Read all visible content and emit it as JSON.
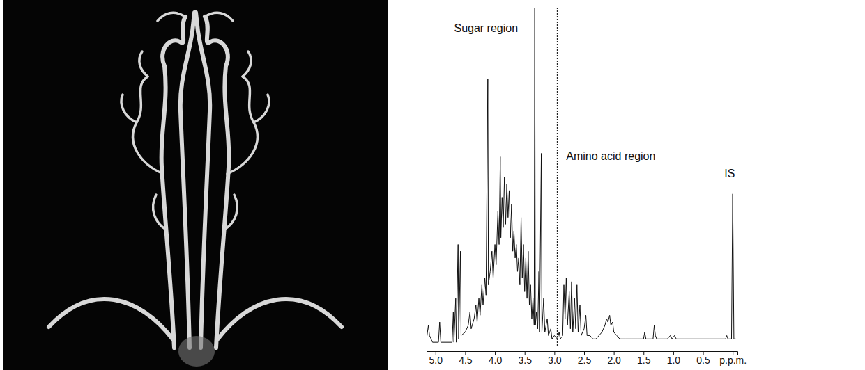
{
  "chart_data": {
    "type": "line",
    "color": "#111111",
    "tick_labels": "x",
    "xlim": [
      5.15,
      -0.08
    ],
    "ylim": [
      0,
      100
    ],
    "xticks": [
      {
        "value": 5,
        "label": "5.0"
      },
      {
        "value": 4.5,
        "label": "4.5"
      },
      {
        "value": 4,
        "label": "4.0"
      },
      {
        "value": 3.5,
        "label": "3.5"
      },
      {
        "value": 3,
        "label": "3.0"
      },
      {
        "value": 2.5,
        "label": "2.5"
      },
      {
        "value": 2,
        "label": "2.0"
      },
      {
        "value": 1.5,
        "label": "1.5"
      },
      {
        "value": 1,
        "label": "1.0"
      },
      {
        "value": 0.5,
        "label": "0.5"
      },
      {
        "value": 0,
        "label": "p.p.m."
      }
    ],
    "vlines": [
      2.95
    ],
    "annotations": [
      {
        "text": "Sugar region",
        "x": 4.15,
        "y": 93
      },
      {
        "text": "Amino acid region",
        "x": 2.05,
        "y": 55
      },
      {
        "text": "IS",
        "x": 0.05,
        "y": 50
      }
    ],
    "x": [
      5.15,
      5.12,
      5.1,
      5.05,
      4.95,
      4.93,
      4.91,
      4.8,
      4.72,
      4.7,
      4.69,
      4.66,
      4.65,
      4.62,
      4.61,
      4.58,
      4.57,
      4.5,
      4.45,
      4.42,
      4.4,
      4.35,
      4.32,
      4.3,
      4.27,
      4.25,
      4.22,
      4.2,
      4.17,
      4.15,
      4.12,
      4.11,
      4.08,
      4.05,
      4.03,
      4.0,
      3.98,
      3.95,
      3.93,
      3.91,
      3.9,
      3.88,
      3.86,
      3.84,
      3.82,
      3.8,
      3.78,
      3.76,
      3.74,
      3.72,
      3.7,
      3.68,
      3.66,
      3.64,
      3.62,
      3.6,
      3.58,
      3.56,
      3.54,
      3.52,
      3.5,
      3.48,
      3.46,
      3.44,
      3.42,
      3.4,
      3.38,
      3.36,
      3.34,
      3.33,
      3.32,
      3.3,
      3.28,
      3.26,
      3.25,
      3.22,
      3.21,
      3.18,
      3.16,
      3.12,
      3.1,
      3.06,
      3.04,
      3.0,
      2.95,
      2.92,
      2.9,
      2.86,
      2.84,
      2.82,
      2.8,
      2.78,
      2.75,
      2.73,
      2.71,
      2.69,
      2.66,
      2.64,
      2.62,
      2.6,
      2.57,
      2.55,
      2.5,
      2.47,
      2.45,
      2.4,
      2.35,
      2.3,
      2.25,
      2.2,
      2.15,
      2.12,
      2.1,
      2.07,
      2.05,
      2.02,
      2.0,
      1.95,
      1.9,
      1.8,
      1.7,
      1.6,
      1.5,
      1.48,
      1.46,
      1.4,
      1.34,
      1.32,
      1.3,
      1.28,
      1.2,
      1.1,
      1.05,
      1.02,
      0.98,
      0.95,
      0.9,
      0.8,
      0.6,
      0.4,
      0.2,
      0.12,
      0.1,
      0.08,
      0.02,
      0.0,
      -0.02,
      -0.05
    ],
    "values": [
      2,
      6,
      3,
      1,
      1,
      7,
      1,
      1,
      1,
      10,
      1,
      14,
      1,
      30,
      2,
      28,
      3,
      4,
      6,
      10,
      5,
      8,
      12,
      7,
      14,
      9,
      18,
      12,
      20,
      15,
      79,
      18,
      22,
      28,
      20,
      30,
      24,
      40,
      30,
      56,
      32,
      44,
      35,
      50,
      36,
      48,
      38,
      46,
      32,
      42,
      28,
      34,
      26,
      30,
      22,
      26,
      18,
      38,
      20,
      30,
      16,
      26,
      14,
      28,
      12,
      18,
      8,
      14,
      6,
      100,
      6,
      10,
      5,
      22,
      4,
      57,
      4,
      14,
      4,
      8,
      3,
      5,
      2,
      3,
      2,
      4,
      2,
      3,
      18,
      8,
      20,
      6,
      16,
      5,
      19,
      4,
      14,
      5,
      18,
      4,
      12,
      3,
      5,
      9,
      3,
      3,
      2,
      2,
      3,
      4,
      6,
      8,
      7,
      9,
      6,
      7,
      4,
      3,
      2,
      2,
      2,
      2,
      2,
      4,
      2,
      2,
      2,
      6,
      3,
      2,
      2,
      2,
      3,
      2,
      3,
      2,
      2,
      2,
      2,
      2,
      2,
      2,
      3,
      2,
      2,
      45,
      2,
      2
    ]
  }
}
